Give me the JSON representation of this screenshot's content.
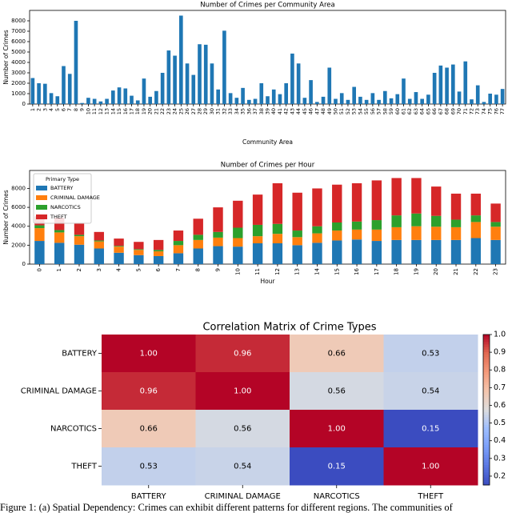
{
  "chart_data": [
    {
      "type": "bar",
      "title": "Number of Crimes per Community Area",
      "x_label": "Community Area",
      "y_label": "Number of Crimes",
      "color": "#1f77b4",
      "categories": [
        "1",
        "2",
        "3",
        "4",
        "5",
        "6",
        "7",
        "8",
        "9",
        "10",
        "11",
        "12",
        "13",
        "14",
        "15",
        "16",
        "17",
        "18",
        "19",
        "20",
        "21",
        "22",
        "23",
        "24",
        "25",
        "26",
        "27",
        "28",
        "29",
        "30",
        "31",
        "32",
        "33",
        "34",
        "35",
        "36",
        "37",
        "38",
        "39",
        "40",
        "41",
        "42",
        "43",
        "44",
        "45",
        "46",
        "47",
        "48",
        "49",
        "50",
        "51",
        "52",
        "53",
        "54",
        "55",
        "56",
        "57",
        "58",
        "59",
        "60",
        "61",
        "62",
        "63",
        "64",
        "65",
        "66",
        "67",
        "68",
        "69",
        "70",
        "71",
        "72",
        "73",
        "74",
        "75",
        "76",
        "77"
      ],
      "values": [
        2500,
        2000,
        1950,
        1050,
        750,
        3650,
        2900,
        8000,
        100,
        600,
        500,
        250,
        500,
        1300,
        1600,
        1500,
        800,
        350,
        2450,
        700,
        1250,
        3000,
        5150,
        4650,
        8500,
        3900,
        2800,
        5750,
        5700,
        3900,
        1400,
        7050,
        1050,
        600,
        1550,
        400,
        500,
        2000,
        750,
        1400,
        950,
        2000,
        4850,
        3900,
        600,
        2300,
        200,
        700,
        3500,
        500,
        1050,
        400,
        1650,
        700,
        400,
        1050,
        400,
        1250,
        550,
        950,
        2450,
        500,
        1150,
        500,
        900,
        3000,
        3700,
        3500,
        3800,
        1200,
        4100,
        450,
        1800,
        200,
        1000,
        900,
        1450
      ],
      "ylim": [
        0,
        9000
      ],
      "yticks": [
        0,
        1000,
        2000,
        3000,
        4000,
        5000,
        6000,
        7000,
        8000
      ]
    },
    {
      "type": "stacked_bar",
      "title": "Number of Crimes per Hour",
      "x_label": "Hour",
      "y_label": "Number of Crimes",
      "legend_title": "Primary Type",
      "legend": "upper left",
      "categories": [
        "0",
        "1",
        "2",
        "3",
        "4",
        "5",
        "6",
        "7",
        "8",
        "9",
        "10",
        "11",
        "12",
        "13",
        "14",
        "15",
        "16",
        "17",
        "18",
        "19",
        "20",
        "21",
        "22",
        "23"
      ],
      "series": [
        {
          "name": "BATTERY",
          "color": "#1f77b4",
          "values": [
            2450,
            2250,
            2050,
            1650,
            1200,
            950,
            850,
            1150,
            1650,
            1900,
            1850,
            2200,
            2200,
            2000,
            2250,
            2500,
            2600,
            2450,
            2550,
            2550,
            2550,
            2550,
            2750,
            2550
          ]
        },
        {
          "name": "CRIMINAL DAMAGE",
          "color": "#ff7f0e",
          "values": [
            1350,
            1100,
            900,
            750,
            650,
            550,
            500,
            850,
            900,
            900,
            900,
            750,
            1000,
            850,
            1000,
            1050,
            1050,
            1200,
            1350,
            1450,
            1400,
            1350,
            1700,
            1400
          ]
        },
        {
          "name": "NARCOTICS",
          "color": "#2ca02c",
          "values": [
            300,
            250,
            150,
            100,
            80,
            80,
            150,
            450,
            550,
            600,
            1100,
            1200,
            1050,
            700,
            750,
            850,
            850,
            1000,
            1250,
            1350,
            1150,
            800,
            700,
            500
          ]
        },
        {
          "name": "THEFT",
          "color": "#d62728",
          "values": [
            950,
            1300,
            1200,
            900,
            770,
            770,
            1050,
            1100,
            1700,
            2600,
            2850,
            3200,
            4300,
            4000,
            4000,
            4000,
            4050,
            4200,
            3950,
            3750,
            3100,
            2750,
            2300,
            1950
          ]
        }
      ],
      "ylim": [
        0,
        9900
      ],
      "yticks": [
        0,
        2000,
        4000,
        6000,
        8000
      ]
    },
    {
      "type": "heatmap",
      "title": "Correlation Matrix of Crime Types",
      "colormap": "coolwarm",
      "x_categories": [
        "BATTERY",
        "CRIMINAL DAMAGE",
        "NARCOTICS",
        "THEFT"
      ],
      "y_categories": [
        "BATTERY",
        "CRIMINAL DAMAGE",
        "NARCOTICS",
        "THEFT"
      ],
      "values": [
        [
          1,
          0.96,
          0.66,
          0.53
        ],
        [
          0.96,
          1,
          0.56,
          0.54
        ],
        [
          0.66,
          0.56,
          1,
          0.15
        ],
        [
          0.53,
          0.54,
          0.15,
          1
        ]
      ],
      "value_labels": [
        [
          "1.00",
          "0.96",
          "0.66",
          "0.53"
        ],
        [
          "0.96",
          "1.00",
          "0.56",
          "0.54"
        ],
        [
          "0.66",
          "0.56",
          "1.00",
          "0.15"
        ],
        [
          "0.53",
          "0.54",
          "0.15",
          "1.00"
        ]
      ],
      "zlim": [
        0.15,
        1
      ],
      "zticks": [
        0.2,
        0.3,
        0.4,
        0.5,
        0.6,
        0.7,
        0.8,
        0.9,
        {
          "value": 1,
          "label": "1.0"
        }
      ]
    }
  ],
  "caption": "Figure 1: (a) Spatial Dependency: Crimes can exhibit different patterns for different regions. The communities of"
}
